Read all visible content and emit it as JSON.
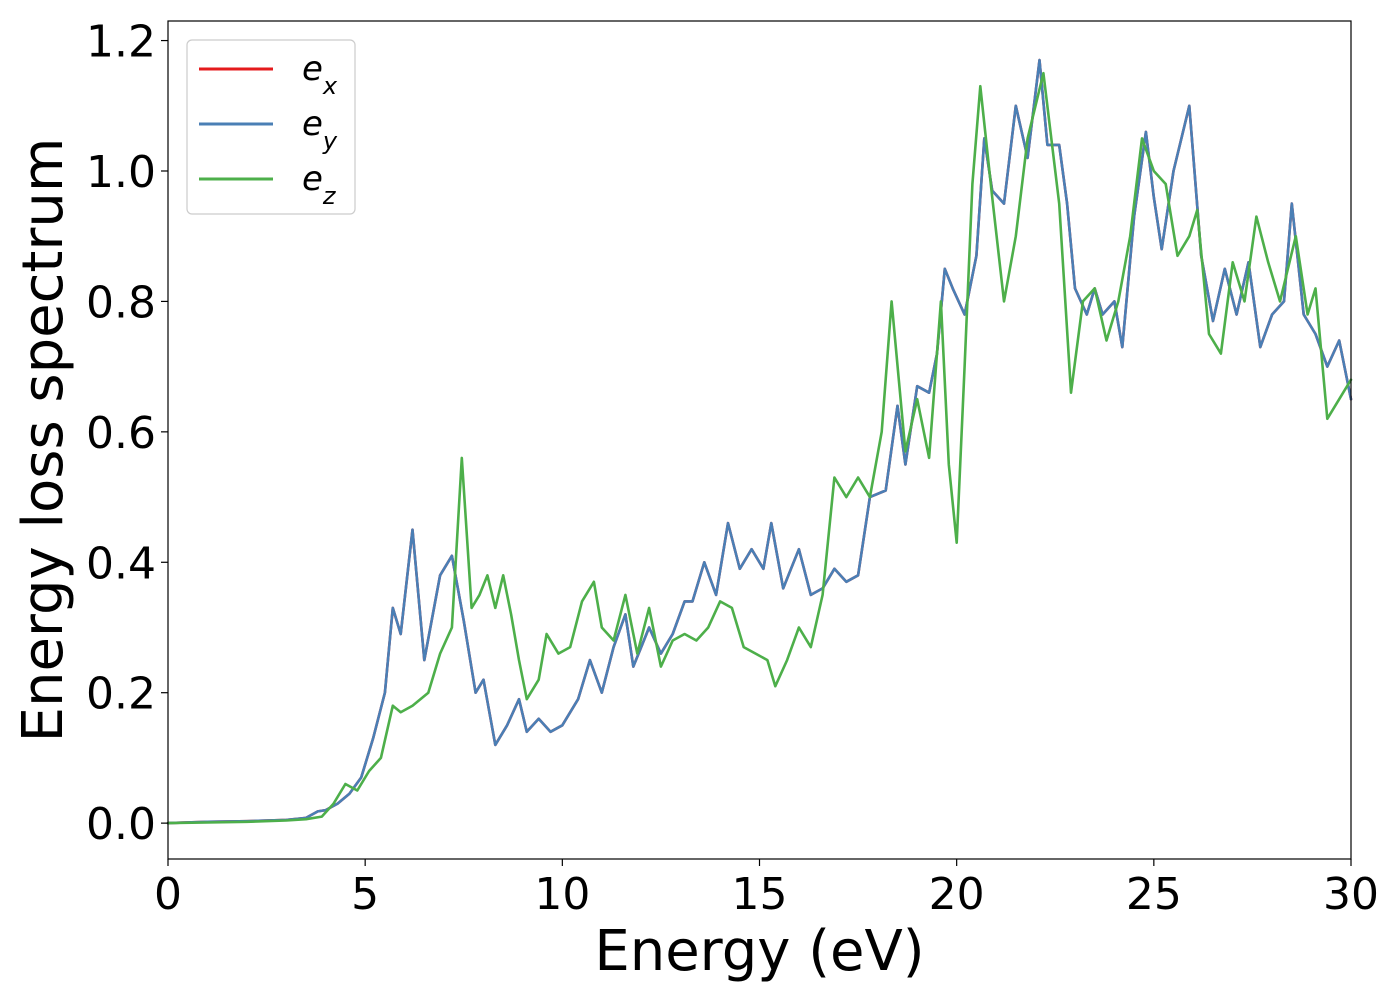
{
  "chart_data": {
    "type": "line",
    "xlabel": "Energy (eV)",
    "ylabel": "Energy loss spectrum",
    "xlim": [
      0,
      30
    ],
    "ylim": [
      -0.055,
      1.23
    ],
    "xticks": [
      0,
      5,
      10,
      15,
      20,
      25,
      30
    ],
    "yticks": [
      0.0,
      0.2,
      0.4,
      0.6,
      0.8,
      1.0,
      1.2
    ],
    "xtick_labels": [
      "0",
      "5",
      "10",
      "15",
      "20",
      "25",
      "30"
    ],
    "ytick_labels": [
      "0.0",
      "0.2",
      "0.4",
      "0.6",
      "0.8",
      "1.0",
      "1.2"
    ],
    "grid": false,
    "legend_position": "top-left",
    "series": [
      {
        "name": "e",
        "subscript": "x",
        "color": "#e41a1c",
        "x": [
          0,
          1,
          2,
          3,
          3.5,
          3.8,
          4.0,
          4.3,
          4.6,
          4.9,
          5.2,
          5.5,
          5.7,
          5.9,
          6.2,
          6.5,
          6.9,
          7.2,
          7.5,
          7.8,
          8.0,
          8.3,
          8.6,
          8.9,
          9.1,
          9.4,
          9.7,
          10.0,
          10.4,
          10.7,
          11.0,
          11.3,
          11.6,
          11.8,
          12.0,
          12.2,
          12.5,
          12.8,
          13.1,
          13.3,
          13.6,
          13.9,
          14.2,
          14.5,
          14.8,
          15.1,
          15.3,
          15.6,
          15.8,
          16.0,
          16.3,
          16.6,
          16.9,
          17.2,
          17.5,
          17.8,
          18.2,
          18.5,
          18.7,
          19.0,
          19.3,
          19.5,
          19.7,
          19.9,
          20.2,
          20.5,
          20.7,
          20.9,
          21.2,
          21.5,
          21.8,
          22.1,
          22.3,
          22.6,
          22.8,
          23.0,
          23.3,
          23.5,
          23.7,
          24.0,
          24.2,
          24.5,
          24.8,
          25.0,
          25.2,
          25.5,
          25.9,
          26.2,
          26.5,
          26.8,
          27.1,
          27.4,
          27.7,
          28.0,
          28.3,
          28.5,
          28.8,
          29.1,
          29.4,
          29.7,
          30.0
        ],
        "values": [
          0.0,
          0.002,
          0.003,
          0.005,
          0.008,
          0.018,
          0.02,
          0.03,
          0.045,
          0.07,
          0.13,
          0.2,
          0.33,
          0.29,
          0.45,
          0.25,
          0.38,
          0.41,
          0.31,
          0.2,
          0.22,
          0.12,
          0.15,
          0.19,
          0.14,
          0.16,
          0.14,
          0.15,
          0.19,
          0.25,
          0.2,
          0.27,
          0.32,
          0.24,
          0.27,
          0.3,
          0.26,
          0.29,
          0.34,
          0.34,
          0.4,
          0.35,
          0.46,
          0.39,
          0.42,
          0.39,
          0.46,
          0.36,
          0.39,
          0.42,
          0.35,
          0.36,
          0.39,
          0.37,
          0.38,
          0.5,
          0.51,
          0.64,
          0.55,
          0.67,
          0.66,
          0.72,
          0.85,
          0.82,
          0.78,
          0.87,
          1.05,
          0.97,
          0.95,
          1.1,
          1.02,
          1.17,
          1.04,
          1.04,
          0.95,
          0.82,
          0.78,
          0.82,
          0.78,
          0.8,
          0.73,
          0.93,
          1.06,
          0.96,
          0.88,
          1.0,
          1.1,
          0.87,
          0.77,
          0.85,
          0.78,
          0.86,
          0.73,
          0.78,
          0.8,
          0.95,
          0.78,
          0.75,
          0.7,
          0.74,
          0.65
        ]
      },
      {
        "name": "e",
        "subscript": "y",
        "color": "#4a7fb5",
        "x": [
          0,
          1,
          2,
          3,
          3.5,
          3.8,
          4.0,
          4.3,
          4.6,
          4.9,
          5.2,
          5.5,
          5.7,
          5.9,
          6.2,
          6.5,
          6.9,
          7.2,
          7.5,
          7.8,
          8.0,
          8.3,
          8.6,
          8.9,
          9.1,
          9.4,
          9.7,
          10.0,
          10.4,
          10.7,
          11.0,
          11.3,
          11.6,
          11.8,
          12.0,
          12.2,
          12.5,
          12.8,
          13.1,
          13.3,
          13.6,
          13.9,
          14.2,
          14.5,
          14.8,
          15.1,
          15.3,
          15.6,
          15.8,
          16.0,
          16.3,
          16.6,
          16.9,
          17.2,
          17.5,
          17.8,
          18.2,
          18.5,
          18.7,
          19.0,
          19.3,
          19.5,
          19.7,
          19.9,
          20.2,
          20.5,
          20.7,
          20.9,
          21.2,
          21.5,
          21.8,
          22.1,
          22.3,
          22.6,
          22.8,
          23.0,
          23.3,
          23.5,
          23.7,
          24.0,
          24.2,
          24.5,
          24.8,
          25.0,
          25.2,
          25.5,
          25.9,
          26.2,
          26.5,
          26.8,
          27.1,
          27.4,
          27.7,
          28.0,
          28.3,
          28.5,
          28.8,
          29.1,
          29.4,
          29.7,
          30.0
        ],
        "values": [
          0.0,
          0.002,
          0.003,
          0.005,
          0.008,
          0.018,
          0.02,
          0.03,
          0.045,
          0.07,
          0.13,
          0.2,
          0.33,
          0.29,
          0.45,
          0.25,
          0.38,
          0.41,
          0.31,
          0.2,
          0.22,
          0.12,
          0.15,
          0.19,
          0.14,
          0.16,
          0.14,
          0.15,
          0.19,
          0.25,
          0.2,
          0.27,
          0.32,
          0.24,
          0.27,
          0.3,
          0.26,
          0.29,
          0.34,
          0.34,
          0.4,
          0.35,
          0.46,
          0.39,
          0.42,
          0.39,
          0.46,
          0.36,
          0.39,
          0.42,
          0.35,
          0.36,
          0.39,
          0.37,
          0.38,
          0.5,
          0.51,
          0.64,
          0.55,
          0.67,
          0.66,
          0.72,
          0.85,
          0.82,
          0.78,
          0.87,
          1.05,
          0.97,
          0.95,
          1.1,
          1.02,
          1.17,
          1.04,
          1.04,
          0.95,
          0.82,
          0.78,
          0.82,
          0.78,
          0.8,
          0.73,
          0.93,
          1.06,
          0.96,
          0.88,
          1.0,
          1.1,
          0.87,
          0.77,
          0.85,
          0.78,
          0.86,
          0.73,
          0.78,
          0.8,
          0.95,
          0.78,
          0.75,
          0.7,
          0.74,
          0.65
        ]
      },
      {
        "name": "e",
        "subscript": "z",
        "color": "#4daf4a",
        "x": [
          0,
          1,
          2,
          3,
          3.5,
          3.9,
          4.2,
          4.5,
          4.8,
          5.1,
          5.4,
          5.7,
          5.9,
          6.2,
          6.6,
          6.9,
          7.2,
          7.45,
          7.7,
          7.9,
          8.1,
          8.3,
          8.5,
          8.7,
          8.9,
          9.1,
          9.4,
          9.6,
          9.9,
          10.2,
          10.5,
          10.8,
          11.0,
          11.3,
          11.6,
          11.9,
          12.2,
          12.5,
          12.8,
          13.1,
          13.4,
          13.7,
          14.0,
          14.3,
          14.6,
          14.9,
          15.2,
          15.4,
          15.7,
          16.0,
          16.3,
          16.6,
          16.9,
          17.2,
          17.5,
          17.8,
          18.1,
          18.35,
          18.7,
          19.0,
          19.3,
          19.6,
          19.8,
          20.0,
          20.2,
          20.4,
          20.6,
          20.9,
          21.2,
          21.5,
          21.8,
          22.0,
          22.2,
          22.6,
          22.9,
          23.2,
          23.5,
          23.8,
          24.1,
          24.4,
          24.7,
          25.0,
          25.3,
          25.6,
          25.9,
          26.1,
          26.4,
          26.7,
          27.0,
          27.3,
          27.6,
          27.9,
          28.2,
          28.6,
          28.9,
          29.1,
          29.4,
          29.7,
          30.0
        ],
        "values": [
          0.0,
          0.001,
          0.002,
          0.004,
          0.006,
          0.01,
          0.03,
          0.06,
          0.05,
          0.08,
          0.1,
          0.18,
          0.17,
          0.18,
          0.2,
          0.26,
          0.3,
          0.56,
          0.33,
          0.35,
          0.38,
          0.33,
          0.38,
          0.32,
          0.25,
          0.19,
          0.22,
          0.29,
          0.26,
          0.27,
          0.34,
          0.37,
          0.3,
          0.28,
          0.35,
          0.26,
          0.33,
          0.24,
          0.28,
          0.29,
          0.28,
          0.3,
          0.34,
          0.33,
          0.27,
          0.26,
          0.25,
          0.21,
          0.25,
          0.3,
          0.27,
          0.35,
          0.53,
          0.5,
          0.53,
          0.5,
          0.6,
          0.8,
          0.57,
          0.65,
          0.56,
          0.8,
          0.55,
          0.43,
          0.7,
          0.98,
          1.13,
          0.96,
          0.8,
          0.9,
          1.05,
          1.1,
          1.15,
          0.95,
          0.66,
          0.8,
          0.82,
          0.74,
          0.8,
          0.9,
          1.05,
          1.0,
          0.98,
          0.87,
          0.9,
          0.94,
          0.75,
          0.72,
          0.86,
          0.8,
          0.93,
          0.86,
          0.8,
          0.9,
          0.78,
          0.82,
          0.62,
          0.65,
          0.68
        ]
      }
    ]
  }
}
